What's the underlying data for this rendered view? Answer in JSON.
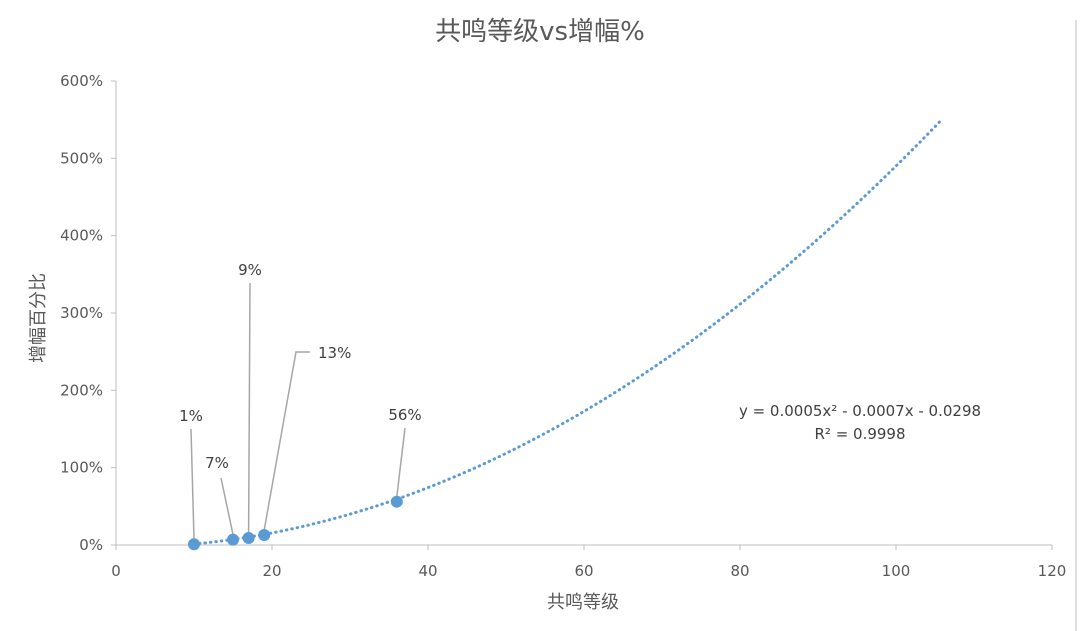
{
  "chart_data": {
    "type": "scatter",
    "title": "共鸣等级vs增幅%",
    "xlabel": "共鸣等级",
    "ylabel": "增幅百分比",
    "xlim": [
      0,
      120
    ],
    "ylim": [
      0,
      6
    ],
    "xticks": [
      "0",
      "20",
      "40",
      "60",
      "80",
      "100",
      "120"
    ],
    "yticks": [
      "0%",
      "100%",
      "200%",
      "300%",
      "400%",
      "500%",
      "600%"
    ],
    "grid": false,
    "points": [
      {
        "x": 10,
        "y": 0.01,
        "label": "1%"
      },
      {
        "x": 15,
        "y": 0.07,
        "label": "7%"
      },
      {
        "x": 17,
        "y": 0.09,
        "label": "9%"
      },
      {
        "x": 19,
        "y": 0.13,
        "label": "13%"
      },
      {
        "x": 36,
        "y": 0.56,
        "label": "56%"
      }
    ],
    "trendline": {
      "type": "polynomial",
      "order": 2,
      "coefficients": [
        0.0005,
        -0.0007,
        -0.0298
      ],
      "x_range": [
        10,
        106
      ],
      "equation": "y = 0.0005x² - 0.0007x - 0.0298",
      "r_squared": "R² = 0.9998"
    },
    "colors": {
      "points": "#5b9bd5",
      "trendline": "#5b9bd5",
      "leader_lines": "#a6a6a6",
      "axis": "#bfbfbf",
      "text": "#595959"
    }
  }
}
